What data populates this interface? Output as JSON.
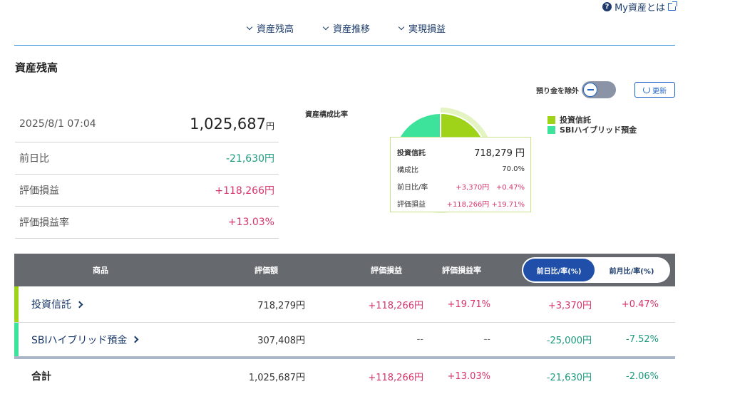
{
  "help": {
    "label": "My資産とは"
  },
  "nav": {
    "items": [
      {
        "label": "資産残高"
      },
      {
        "label": "資産推移"
      },
      {
        "label": "実現損益"
      }
    ]
  },
  "section": {
    "title": "資産残高"
  },
  "controls": {
    "exclude_deposit_label": "預り金を除外",
    "refresh_label": "更新",
    "exclude_deposit_on": false
  },
  "summary": {
    "timestamp": "2025/8/1 07:04",
    "total_value": "1,025,687",
    "total_unit": "円",
    "rows": [
      {
        "label": "前日比",
        "value": "-21,630円"
      },
      {
        "label": "評価損益",
        "value": "+118,266円"
      },
      {
        "label": "評価損益率",
        "value": "+13.03%"
      }
    ]
  },
  "composition": {
    "title": "資産構成比率",
    "legend": [
      {
        "label": "投資信託",
        "color": "#9ed31a"
      },
      {
        "label": "SBIハイブリッド預金",
        "color": "#3de39a"
      }
    ],
    "chart_data": {
      "type": "pie",
      "categories": [
        "投資信託",
        "SBIハイブリッド預金"
      ],
      "values": [
        70.0,
        30.0
      ],
      "title": "資産構成比率"
    },
    "tooltip": {
      "name": "投資信託",
      "amount": "718,279 円",
      "ratio_label": "構成比",
      "ratio_value": "70.0%",
      "dod_label": "前日比/率",
      "dod_value": "+3,370円",
      "dod_rate": "+0.47%",
      "pl_label": "評価損益",
      "pl_value": "+118,266円",
      "pl_rate": "+19.71%"
    }
  },
  "table": {
    "headers": {
      "product": "商品",
      "valuation": "評価額",
      "pl": "評価損益",
      "pl_rate": "評価損益率"
    },
    "toggle": {
      "active": "前日比/率(%)",
      "inactive": "前月比/率(%)"
    },
    "rows": [
      {
        "name": "投資信託",
        "valuation": "718,279円",
        "pl": "+118,266円",
        "pl_rate": "+19.71%",
        "change": "+3,370円",
        "change_rate": "+0.47%",
        "color": "#9ed31a"
      },
      {
        "name": "SBIハイブリッド預金",
        "valuation": "307,408円",
        "pl": "--",
        "pl_rate": "--",
        "change": "-25,000円",
        "change_rate": "-7.52%",
        "color": "#3de39a"
      }
    ],
    "total": {
      "label": "合計",
      "valuation": "1,025,687円",
      "pl": "+118,266円",
      "pl_rate": "+13.03%",
      "change": "-21,630円",
      "change_rate": "-2.06%"
    }
  }
}
